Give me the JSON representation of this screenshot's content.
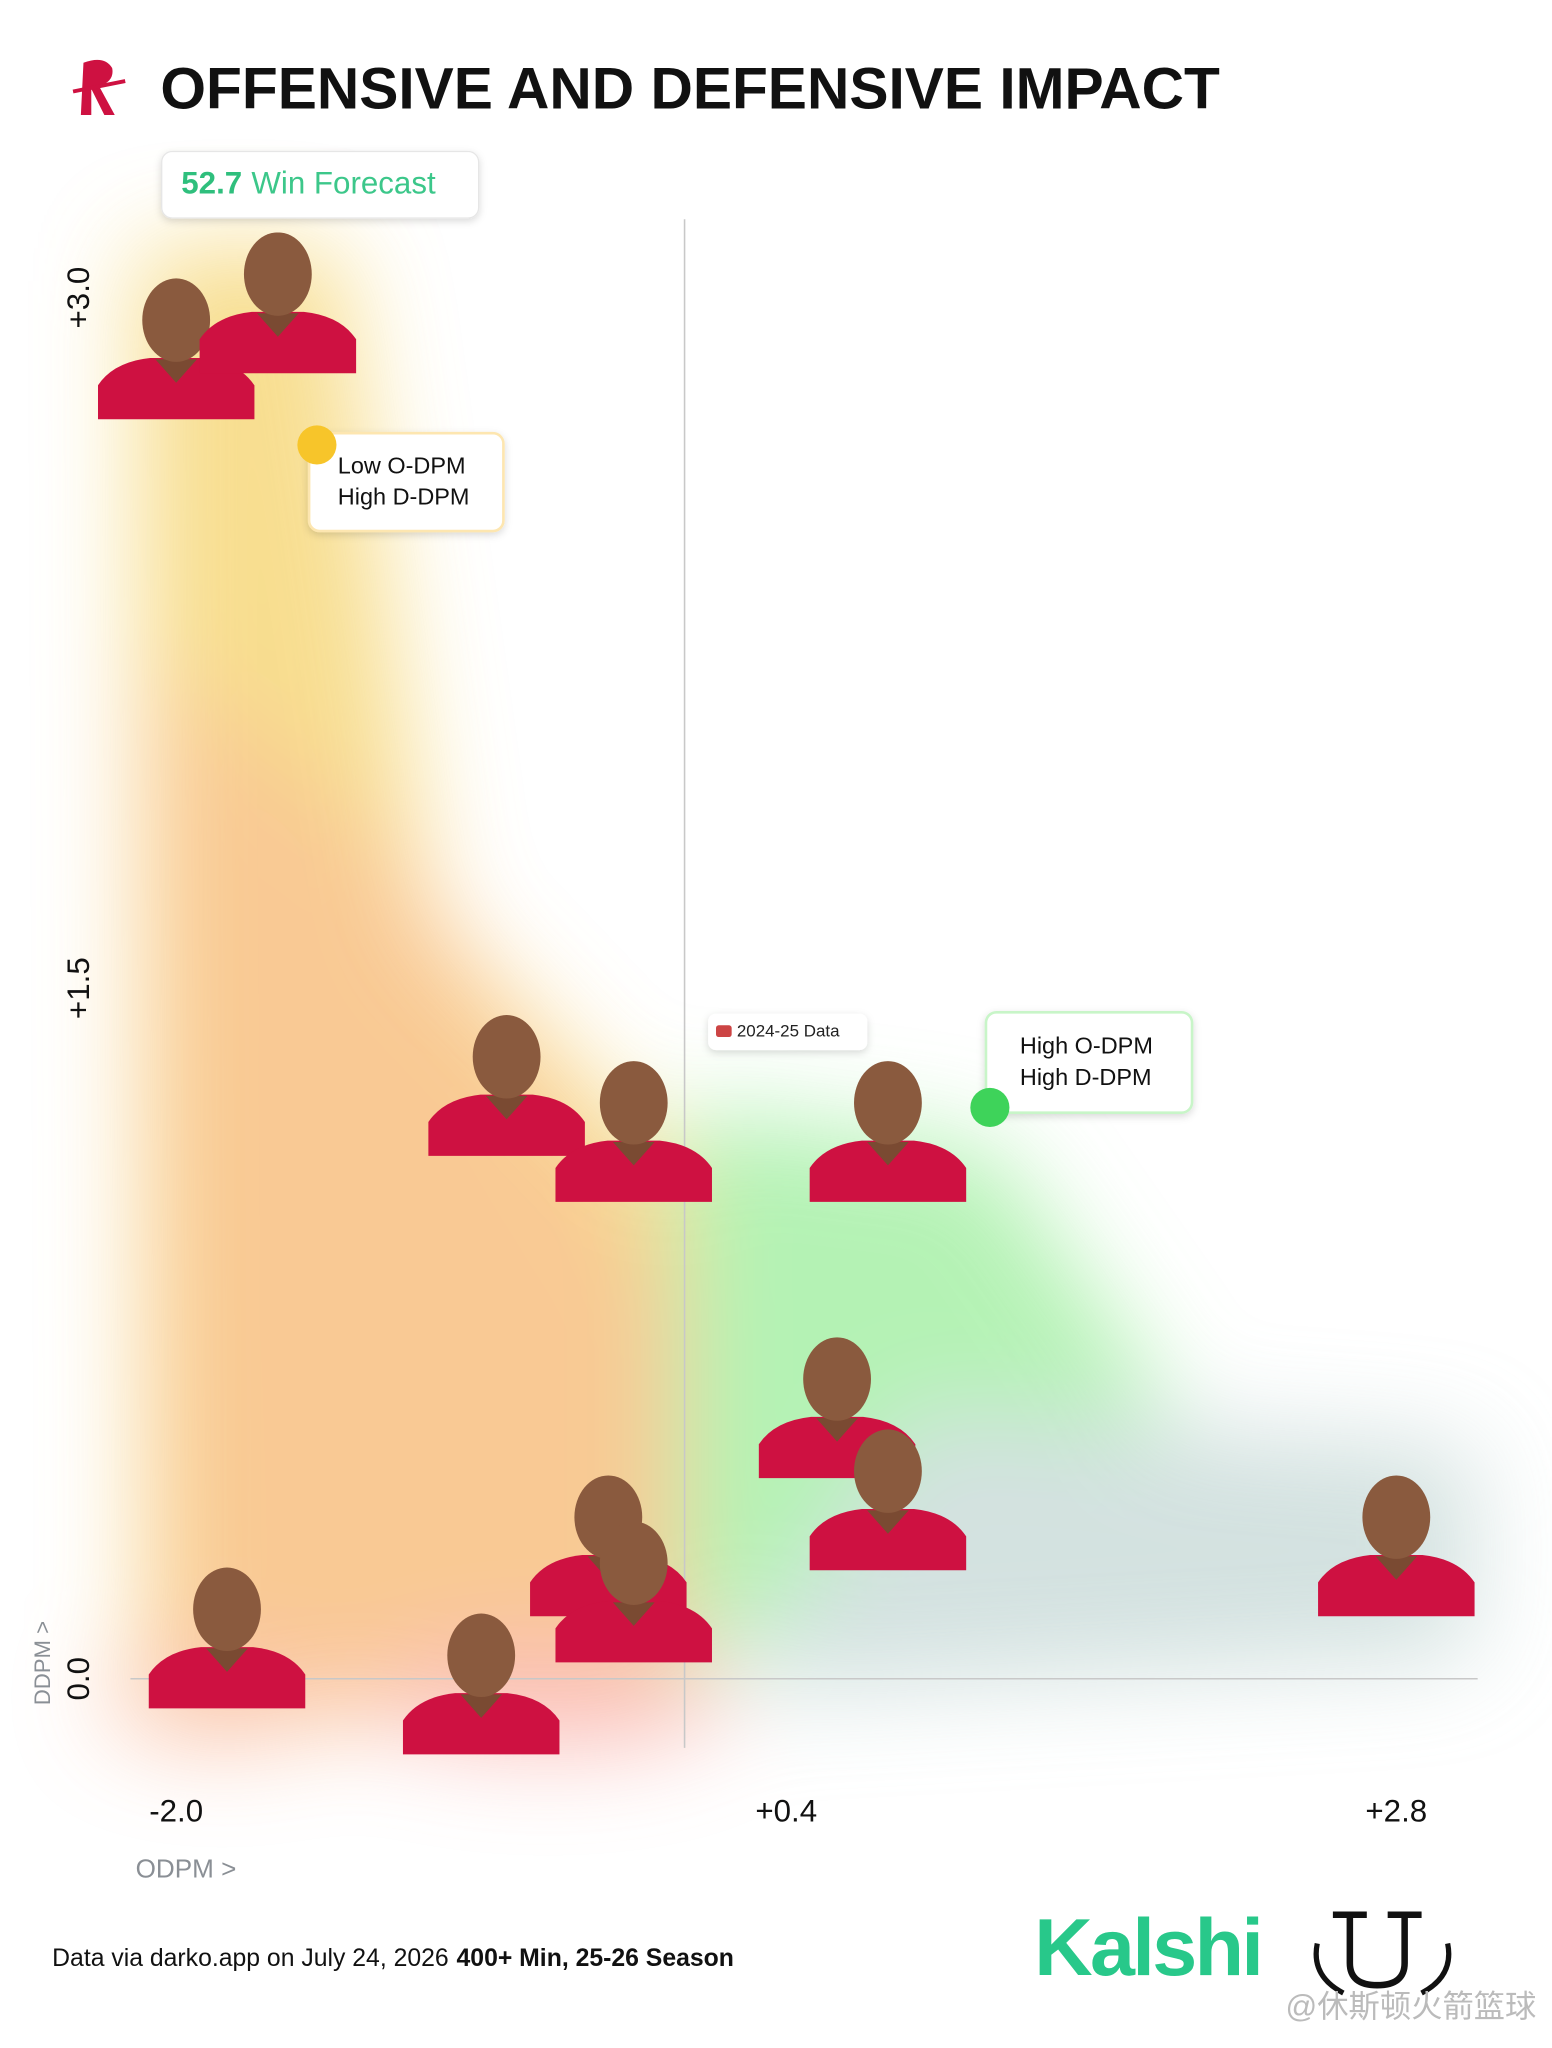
{
  "header": {
    "title": "OFFENSIVE AND DEFENSIVE IMPACT"
  },
  "win_forecast": {
    "value": 52.7,
    "label": "Win Forecast"
  },
  "chart_data": {
    "type": "scatter",
    "series": [
      {
        "color": "#ce1141",
        "x": [
          -2.0,
          -1.6,
          -0.7,
          -0.2,
          0.8,
          0.6,
          0.8,
          2.8,
          -0.3,
          -0.2,
          -1.8,
          -0.8
        ],
        "values": [
          2.9,
          3.0,
          1.3,
          1.2,
          1.2,
          0.6,
          0.4,
          0.3,
          0.3,
          0.2,
          0.1,
          0.0
        ]
      }
    ],
    "xlim": [
      -2.18,
      3.12
    ],
    "ylim": [
      -0.15,
      3.17
    ],
    "xticks": [
      {
        "value": -2,
        "label": "-2.0"
      },
      {
        "value": 0.4,
        "label": "+0.4"
      },
      {
        "value": 2.8,
        "label": "+2.8"
      }
    ],
    "yticks": [
      {
        "value": 0,
        "label": "0.0"
      },
      {
        "value": 1.5,
        "label": "+1.5"
      },
      {
        "value": 3,
        "label": "+3.0"
      }
    ],
    "xlabel": "ODPM >",
    "ylabel": "DDPM >",
    "vline": 0,
    "hline": 0,
    "annotations": [
      {
        "lines": [
          "Low O-DPM",
          "High D-DPM"
        ]
      },
      {
        "lines": [
          "2024-25 Data"
        ]
      },
      {
        "lines": [
          "High O-DPM",
          "High D-DPM"
        ]
      }
    ]
  },
  "footer": {
    "source": "Data via darko.app on July 24, 2026",
    "filter": "400+ Min, 25-26 Season",
    "brand": "Kalshi",
    "watermark": "@休斯顿火箭篮球"
  }
}
